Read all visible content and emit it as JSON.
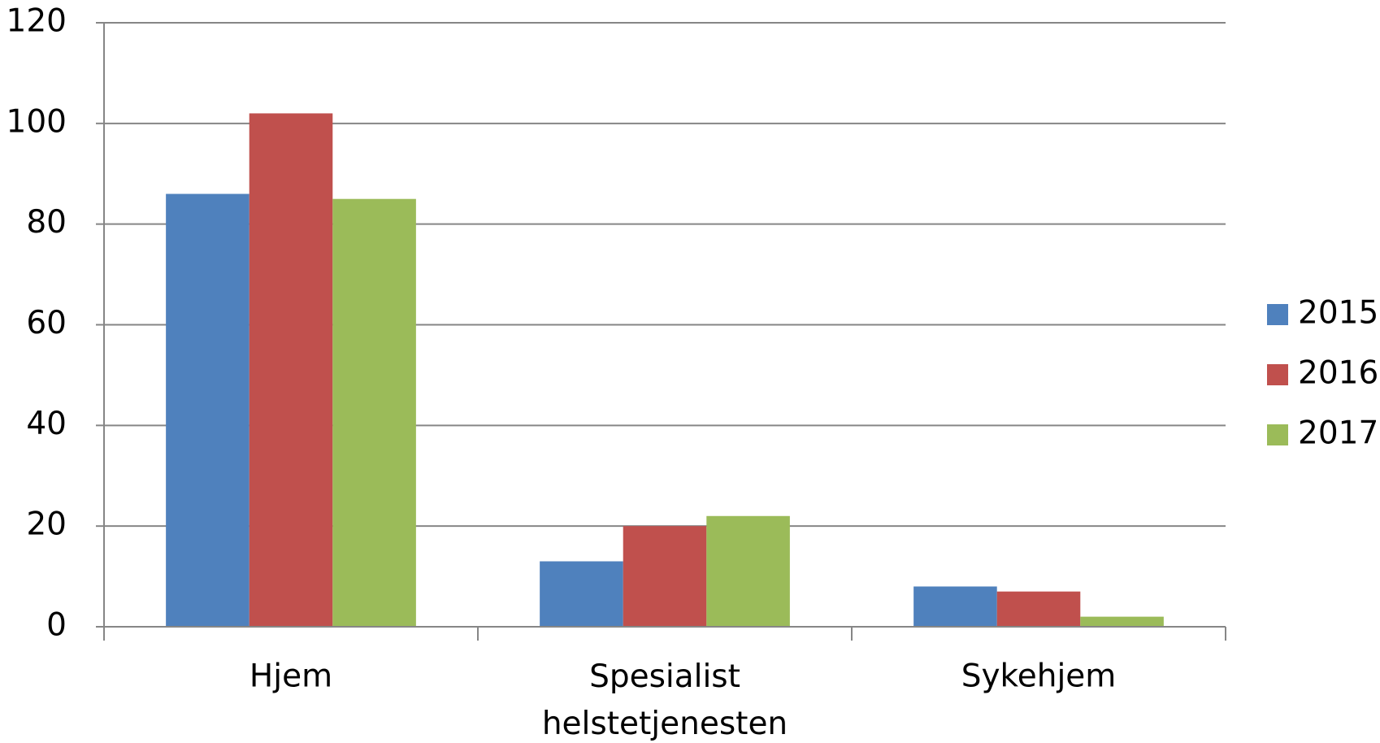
{
  "chart_data": {
    "type": "bar",
    "categories": [
      "Hjem",
      "Spesialist helstetjenesten",
      "Sykehjem"
    ],
    "series": [
      {
        "name": "2015",
        "color": "#4f81bd",
        "values": [
          86,
          13,
          8
        ]
      },
      {
        "name": "2016",
        "color": "#c0504d",
        "values": [
          102,
          20,
          7
        ]
      },
      {
        "name": "2017",
        "color": "#9bbb59",
        "values": [
          85,
          22,
          2
        ]
      }
    ],
    "ylim": [
      0,
      120
    ],
    "yticks": [
      0,
      20,
      40,
      60,
      80,
      100,
      120
    ],
    "grid": true,
    "legend": "right"
  }
}
